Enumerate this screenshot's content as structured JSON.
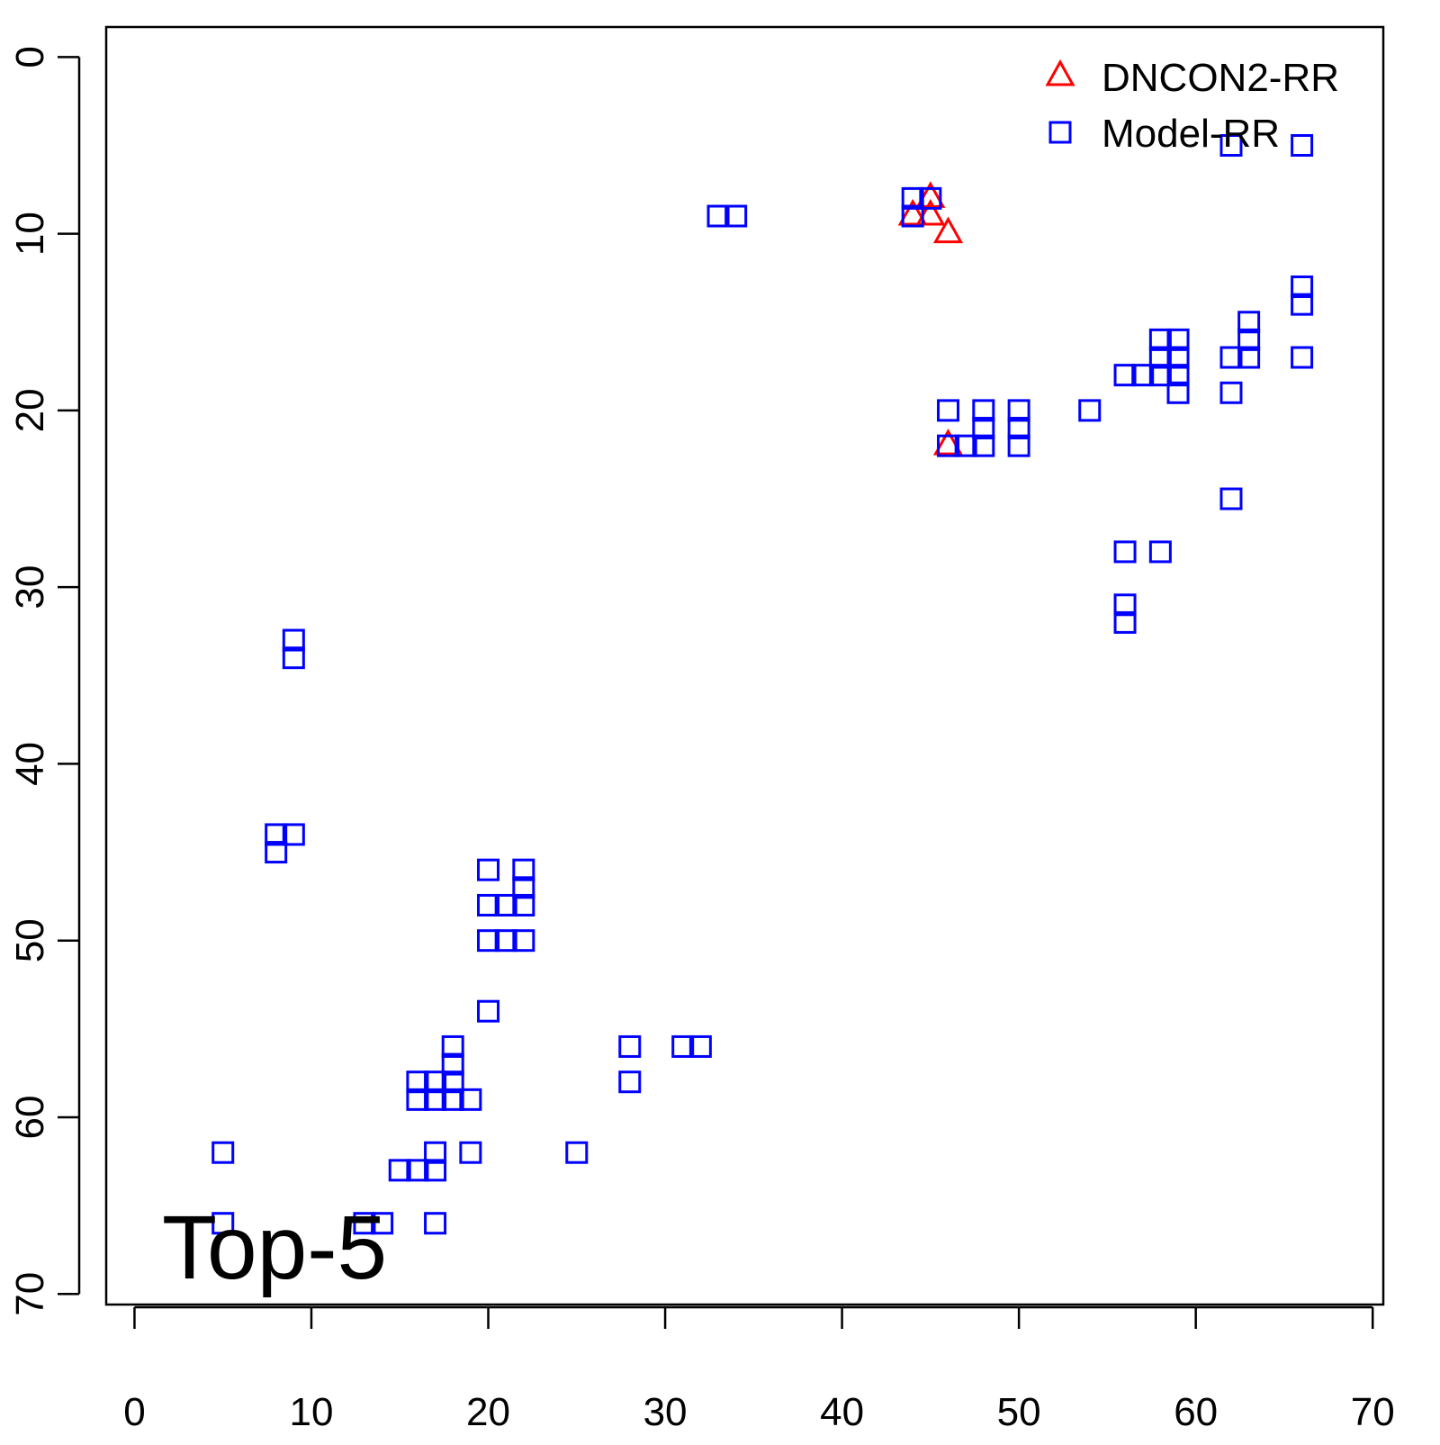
{
  "chart_data": {
    "type": "scatter",
    "annotation": "Top-5",
    "legend": "topright",
    "xlim": [
      -1.6,
      70.6
    ],
    "ylim": [
      70.6,
      -1.7
    ],
    "xticks": [
      0,
      10,
      20,
      30,
      40,
      50,
      60,
      70
    ],
    "yticks": [
      0,
      10,
      20,
      30,
      40,
      50,
      60,
      70
    ],
    "series": [
      {
        "name": "DNCON2-RR",
        "color": "#ff0000",
        "marker": "triangle",
        "x": [
          44,
          45,
          45,
          46,
          46
        ],
        "y": [
          9,
          8,
          9,
          10,
          22
        ]
      },
      {
        "name": "Model-RR",
        "color": "#0000ff",
        "marker": "square",
        "x": [
          44,
          44,
          45,
          33,
          34,
          62,
          66,
          66,
          66,
          66,
          63,
          63,
          63,
          62,
          62,
          62,
          58,
          59,
          58,
          59,
          58,
          59,
          59,
          57,
          56,
          54,
          46,
          46,
          47,
          48,
          48,
          48,
          50,
          50,
          50,
          56,
          58,
          56,
          56,
          9,
          9,
          8,
          9,
          8,
          20,
          22,
          22,
          20,
          21,
          22,
          20,
          21,
          22,
          20,
          18,
          18,
          16,
          17,
          18,
          16,
          17,
          18,
          19,
          28,
          28,
          31,
          32,
          5,
          5,
          17,
          19,
          25,
          15,
          16,
          17,
          13,
          14,
          17
        ],
        "y": [
          8,
          9,
          8,
          9,
          9,
          5,
          5,
          13,
          14,
          17,
          15,
          16,
          17,
          17,
          19,
          25,
          16,
          16,
          17,
          17,
          18,
          18,
          19,
          18,
          18,
          20,
          20,
          22,
          22,
          20,
          21,
          22,
          20,
          21,
          22,
          28,
          28,
          31,
          32,
          33,
          34,
          44,
          44,
          45,
          46,
          46,
          47,
          48,
          48,
          48,
          50,
          50,
          50,
          54,
          56,
          57,
          58,
          58,
          58,
          59,
          59,
          59,
          59,
          56,
          58,
          56,
          56,
          62,
          66,
          62,
          62,
          62,
          63,
          63,
          63,
          66,
          66,
          66
        ]
      }
    ]
  }
}
